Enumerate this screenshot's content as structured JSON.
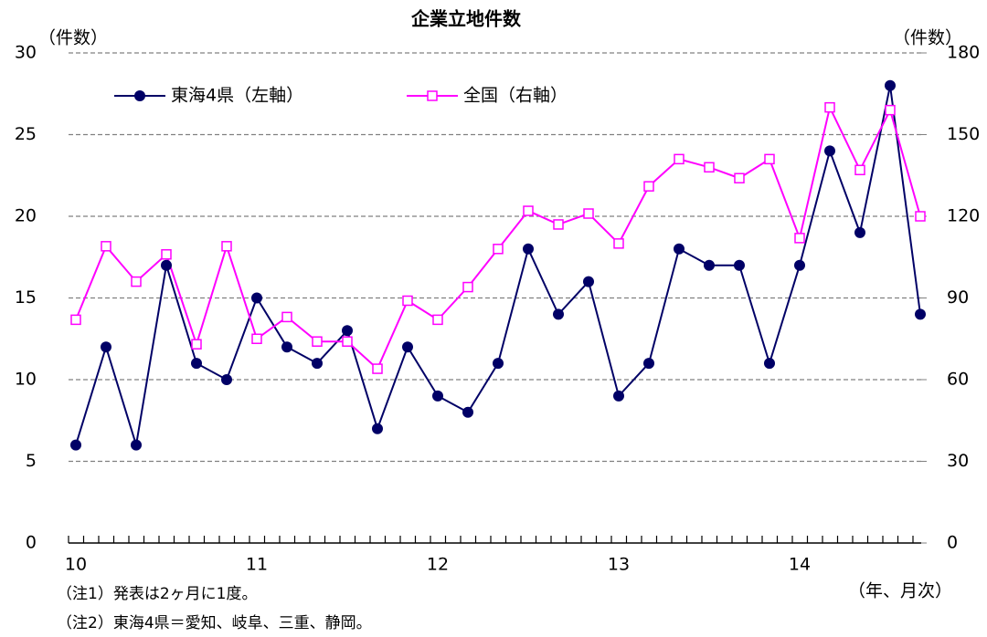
{
  "chart_data": {
    "type": "line",
    "title": "企業立地件数",
    "y_label": "（件数）",
    "y2_label": "（件数）",
    "x_label": "（年、月次）",
    "notes": [
      "（注1）発表は2ヶ月に1度。",
      "（注2）東海4県＝愛知、岐阜、三重、静岡。"
    ],
    "categories": [
      "10",
      null,
      null,
      null,
      null,
      null,
      "11",
      null,
      null,
      null,
      null,
      null,
      "12",
      null,
      null,
      null,
      null,
      null,
      "13",
      null,
      null,
      null,
      null,
      null,
      "14",
      null,
      null,
      null,
      null
    ],
    "series": [
      {
        "name": "東海4県（左軸）",
        "color": "#000066",
        "values": [
          6,
          12,
          6,
          17,
          11,
          10,
          15,
          12,
          11,
          13,
          7,
          12,
          9,
          8,
          11,
          18,
          14,
          16,
          9,
          11,
          18,
          17,
          17,
          11,
          17,
          24,
          19,
          28,
          14
        ]
      },
      {
        "name": "全国（右軸）",
        "color": "#ff00ff",
        "axis": "y2",
        "values": [
          82,
          109,
          96,
          106,
          73,
          109,
          75,
          83,
          74,
          74,
          64,
          89,
          82,
          94,
          108,
          122,
          117,
          121,
          110,
          131,
          141,
          138,
          134,
          141,
          112,
          160,
          137,
          159,
          120
        ]
      }
    ],
    "ylim": [
      0,
      30
    ],
    "yticks": [
      0,
      5,
      10,
      15,
      20,
      25,
      30
    ],
    "y2lim": [
      0,
      180
    ],
    "y2ticks": [
      0,
      30,
      60,
      90,
      120,
      150,
      180
    ],
    "grid": true,
    "legend": "top-left"
  }
}
